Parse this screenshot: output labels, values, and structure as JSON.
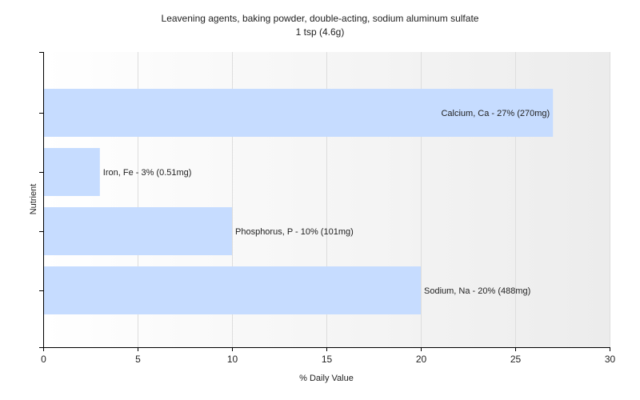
{
  "chart_data": {
    "type": "bar",
    "orientation": "horizontal",
    "title": "Leavening agents, baking powder, double-acting, sodium aluminum sulfate",
    "subtitle": "1 tsp (4.6g)",
    "xlabel": "% Daily Value",
    "ylabel": "Nutrient",
    "xlim": [
      0,
      30
    ],
    "xticks": [
      0,
      5,
      10,
      15,
      20,
      25,
      30
    ],
    "grid": true,
    "legend": "none",
    "bar_color": "#c6dcff",
    "background_gradient": [
      "#ffffff",
      "#ececec"
    ],
    "categories": [
      "Calcium, Ca",
      "Iron, Fe",
      "Phosphorus, P",
      "Sodium, Na"
    ],
    "values": [
      27,
      3,
      10,
      20
    ],
    "data_labels": [
      "Calcium, Ca - 27% (270mg)",
      "Iron, Fe - 3% (0.51mg)",
      "Phosphorus, P - 10% (101mg)",
      "Sodium, Na - 20% (488mg)"
    ]
  }
}
